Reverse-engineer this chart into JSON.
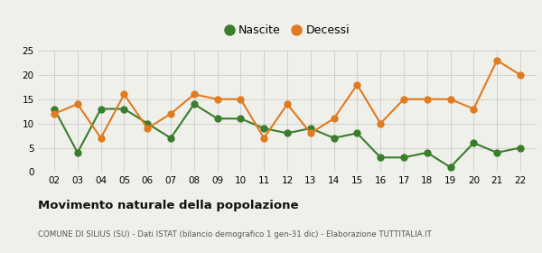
{
  "years": [
    2,
    3,
    4,
    5,
    6,
    7,
    8,
    9,
    10,
    11,
    12,
    13,
    14,
    15,
    16,
    17,
    18,
    19,
    20,
    21,
    22
  ],
  "nascite": [
    13,
    4,
    13,
    13,
    10,
    7,
    14,
    11,
    11,
    9,
    8,
    9,
    7,
    8,
    3,
    3,
    4,
    1,
    6,
    4,
    5
  ],
  "decessi": [
    12,
    14,
    7,
    16,
    9,
    12,
    16,
    15,
    15,
    7,
    14,
    8,
    11,
    18,
    10,
    15,
    15,
    15,
    13,
    23,
    20
  ],
  "nascite_color": "#3a7d2c",
  "decessi_color": "#e07b20",
  "background_color": "#f0f0eb",
  "grid_color": "#cccccc",
  "ylim": [
    0,
    25
  ],
  "yticks": [
    0,
    5,
    10,
    15,
    20,
    25
  ],
  "title": "Movimento naturale della popolazione",
  "subtitle": "COMUNE DI SILIUS (SU) - Dati ISTAT (bilancio demografico 1 gen-31 dic) - Elaborazione TUTTITALIA.IT",
  "legend_nascite": "Nascite",
  "legend_decessi": "Decessi",
  "marker_size": 5,
  "line_width": 1.5
}
